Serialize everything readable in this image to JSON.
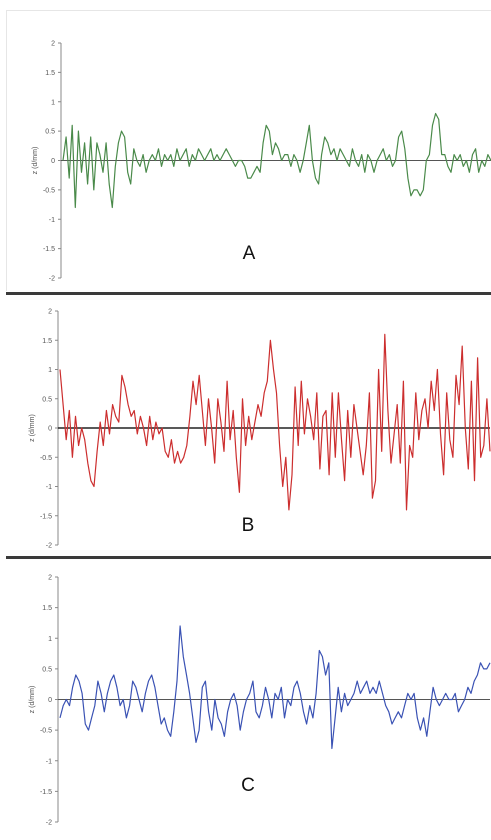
{
  "chart_data": [
    {
      "type": "line",
      "title": "",
      "panel_label": "A",
      "ylabel": "z (d/mm)",
      "ylim": [
        -2,
        2
      ],
      "yticks": [
        "2",
        "1.5",
        "1",
        "0.5",
        "0",
        "-0.5",
        "-1",
        "-1.5",
        "-2"
      ],
      "xlabel": "",
      "grid": false,
      "color": "#4a8a4a",
      "series": [
        {
          "values": [
            0.0,
            0.4,
            -0.3,
            0.6,
            -0.8,
            0.5,
            -0.2,
            0.3,
            -0.4,
            0.4,
            -0.5,
            0.3,
            0.1,
            -0.2,
            0.3,
            -0.4,
            -0.8,
            -0.1,
            0.3,
            0.5,
            0.4,
            -0.2,
            -0.4,
            0.2,
            0.0,
            -0.1,
            0.1,
            -0.2,
            0.0,
            0.1,
            0.0,
            0.2,
            -0.1,
            0.1,
            0.0,
            0.1,
            -0.1,
            0.2,
            0.0,
            0.1,
            0.2,
            -0.1,
            0.1,
            0.0,
            0.2,
            0.1,
            0.0,
            0.1,
            0.2,
            0.0,
            0.1,
            0.0,
            0.1,
            0.2,
            0.1,
            0.0,
            -0.1,
            0.0,
            0.0,
            -0.1,
            -0.3,
            -0.3,
            -0.2,
            -0.1,
            -0.2,
            0.3,
            0.6,
            0.5,
            0.1,
            0.3,
            0.2,
            0.0,
            0.1,
            0.1,
            -0.1,
            0.1,
            0.0,
            -0.2,
            0.0,
            0.3,
            0.6,
            0.0,
            -0.3,
            -0.4,
            0.1,
            0.4,
            0.3,
            0.1,
            0.2,
            0.0,
            0.2,
            0.1,
            0.0,
            -0.1,
            0.2,
            0.0,
            -0.1,
            0.1,
            -0.2,
            0.1,
            0.0,
            -0.2,
            0.0,
            0.1,
            0.2,
            0.0,
            0.1,
            -0.1,
            0.0,
            0.4,
            0.5,
            0.2,
            -0.3,
            -0.6,
            -0.5,
            -0.5,
            -0.6,
            -0.5,
            0.0,
            0.1,
            0.6,
            0.8,
            0.7,
            0.1,
            0.1,
            -0.1,
            -0.2,
            0.1,
            0.0,
            0.1,
            -0.1,
            0.0,
            -0.2,
            0.1,
            0.2,
            -0.2,
            0.0,
            -0.1,
            0.1,
            0.0
          ]
        }
      ]
    },
    {
      "type": "line",
      "title": "",
      "panel_label": "B",
      "ylabel": "z (d/mm)",
      "ylim": [
        -2,
        2
      ],
      "yticks": [
        "2",
        "1.5",
        "1",
        "0.5",
        "0",
        "-0.5",
        "-1",
        "-1.5",
        "-2"
      ],
      "xlabel": "",
      "grid": false,
      "color": "#cc2e2e",
      "series": [
        {
          "values": [
            1.0,
            0.4,
            -0.2,
            0.3,
            -0.5,
            0.2,
            -0.3,
            0.0,
            -0.2,
            -0.6,
            -0.9,
            -1.0,
            -0.4,
            0.1,
            -0.3,
            0.3,
            -0.1,
            0.4,
            0.2,
            0.1,
            0.9,
            0.7,
            0.4,
            0.2,
            0.3,
            -0.1,
            0.2,
            0.0,
            -0.3,
            0.2,
            -0.2,
            0.1,
            -0.1,
            0.0,
            -0.4,
            -0.5,
            -0.2,
            -0.6,
            -0.4,
            -0.6,
            -0.5,
            -0.3,
            0.2,
            0.8,
            0.4,
            0.9,
            0.3,
            -0.3,
            0.5,
            0.0,
            -0.6,
            0.5,
            0.1,
            -0.4,
            0.8,
            -0.2,
            0.3,
            -0.5,
            -1.1,
            0.5,
            -0.3,
            0.2,
            -0.2,
            0.1,
            0.4,
            0.2,
            0.6,
            0.8,
            1.5,
            1.0,
            0.6,
            -0.3,
            -1.0,
            -0.5,
            -1.4,
            -0.8,
            0.7,
            -0.3,
            0.8,
            -0.1,
            0.5,
            0.2,
            -0.2,
            0.6,
            -0.7,
            0.2,
            0.3,
            -0.8,
            0.6,
            -0.5,
            0.6,
            -0.2,
            -0.9,
            0.3,
            -0.5,
            0.4,
            0.0,
            -0.4,
            -0.8,
            -0.3,
            0.6,
            -1.2,
            -0.9,
            1.0,
            -0.4,
            1.6,
            0.3,
            -0.6,
            -0.1,
            0.4,
            -0.6,
            0.8,
            -1.4,
            -0.3,
            -0.5,
            0.6,
            -0.2,
            0.3,
            0.5,
            0.0,
            0.8,
            0.3,
            1.0,
            -0.1,
            -0.8,
            0.6,
            -0.2,
            -0.5,
            0.9,
            0.4,
            1.4,
            0.0,
            -0.7,
            0.8,
            -0.9,
            1.2,
            -0.5,
            -0.3,
            0.5,
            -0.4
          ]
        }
      ]
    },
    {
      "type": "line",
      "title": "",
      "panel_label": "C",
      "ylabel": "z (d/mm)",
      "ylim": [
        -2,
        2
      ],
      "yticks": [
        "2",
        "1.5",
        "1",
        "0.5",
        "0",
        "-0.5",
        "-1",
        "-1.5",
        "-2"
      ],
      "xlabel": "",
      "grid": false,
      "color": "#3a52b4",
      "series": [
        {
          "values": [
            -0.3,
            -0.1,
            0.0,
            -0.1,
            0.2,
            0.4,
            0.3,
            0.1,
            -0.4,
            -0.5,
            -0.3,
            -0.1,
            0.3,
            0.1,
            -0.2,
            0.1,
            0.3,
            0.4,
            0.2,
            -0.1,
            0.0,
            -0.3,
            -0.1,
            0.3,
            0.2,
            0.0,
            -0.2,
            0.1,
            0.3,
            0.4,
            0.2,
            -0.1,
            -0.4,
            -0.3,
            -0.5,
            -0.6,
            -0.2,
            0.3,
            1.2,
            0.7,
            0.4,
            0.1,
            -0.3,
            -0.7,
            -0.5,
            0.2,
            0.3,
            -0.2,
            -0.5,
            0.0,
            -0.3,
            -0.4,
            -0.6,
            -0.2,
            0.0,
            0.1,
            -0.1,
            -0.5,
            -0.2,
            0.0,
            0.1,
            0.3,
            -0.2,
            -0.3,
            -0.1,
            0.2,
            0.0,
            -0.3,
            0.1,
            0.0,
            0.2,
            -0.3,
            0.0,
            -0.1,
            0.2,
            0.3,
            0.1,
            -0.2,
            -0.4,
            -0.1,
            -0.3,
            0.1,
            0.8,
            0.7,
            0.4,
            0.6,
            -0.8,
            -0.3,
            0.2,
            -0.2,
            0.1,
            -0.1,
            0.0,
            0.1,
            0.3,
            0.1,
            0.2,
            0.3,
            0.1,
            0.2,
            0.1,
            0.3,
            0.1,
            -0.1,
            -0.2,
            -0.4,
            -0.3,
            -0.2,
            -0.3,
            -0.1,
            0.1,
            0.0,
            0.1,
            -0.3,
            -0.5,
            -0.3,
            -0.6,
            -0.2,
            0.2,
            0.0,
            -0.1,
            0.0,
            0.1,
            0.0,
            0.0,
            0.1,
            -0.2,
            -0.1,
            0.0,
            0.2,
            0.1,
            0.3,
            0.4,
            0.6,
            0.5,
            0.5,
            0.6
          ]
        }
      ]
    }
  ]
}
